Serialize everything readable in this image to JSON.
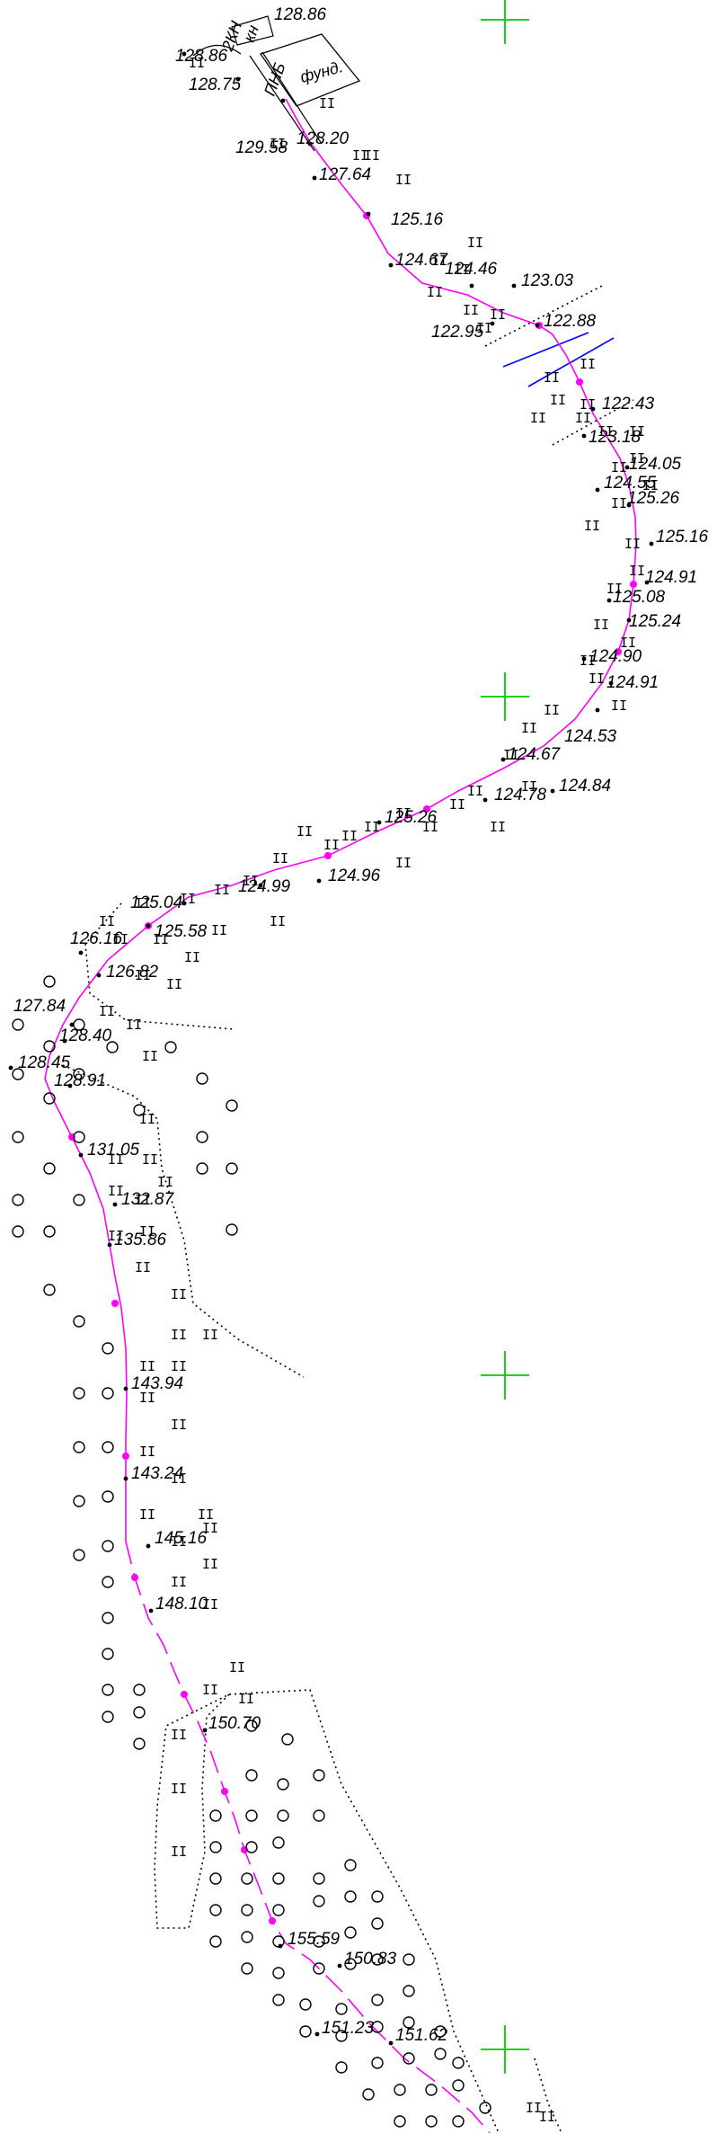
{
  "map": {
    "labels": {
      "foundation": "фунд.",
      "building_tag": "2КН",
      "building_tag2": "кн",
      "small_tag": "ПНБ"
    },
    "elevations": [
      "128.86",
      "128.86",
      "128.75",
      "129.58",
      "128.20",
      "127.64",
      "125.16",
      "124.67",
      "124.46",
      "123.03",
      "122.95",
      "122.88",
      "122.43",
      "123.18",
      "124.05",
      "124.55",
      "125.26",
      "125.16",
      "124.91",
      "125.08",
      "125.24",
      "124.90",
      "124.91",
      "124.53",
      "124.67",
      "124.78",
      "124.84",
      "125.26",
      "124.99",
      "124.96",
      "125.04",
      "125.58",
      "126.16",
      "126.82",
      "127.84",
      "128.40",
      "128.45",
      "128.91",
      "131.05",
      "132.87",
      "135.86",
      "143.94",
      "143.24",
      "145.16",
      "148.10",
      "150.70",
      "155.59",
      "150.83",
      "151.23",
      "151.62"
    ],
    "colors": {
      "route": "#ff00ff",
      "grid_cross": "#00cc00",
      "crossing_line": "#0000ff",
      "text": "#000000",
      "boundary": "#000000"
    }
  }
}
